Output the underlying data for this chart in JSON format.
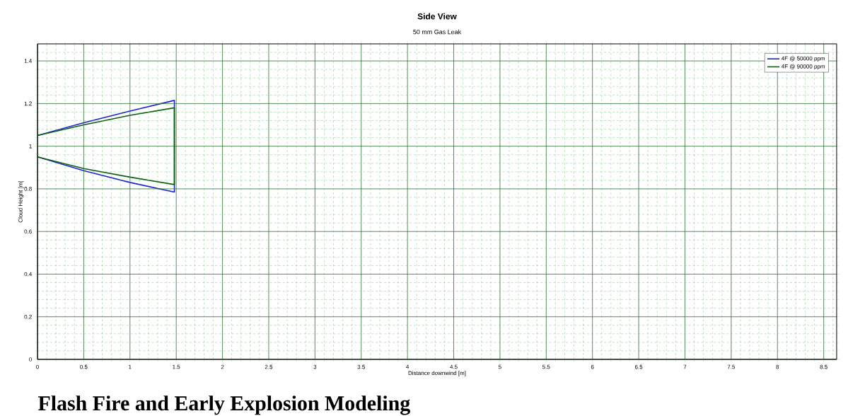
{
  "chart_data": {
    "type": "line",
    "title": "Side View",
    "subtitle": "50 mm Gas Leak",
    "xlabel": "Distance downwind [m]",
    "ylabel": "Cloud Height [m]",
    "series": [
      {
        "name": "4F @ 50000 ppm",
        "color": "#1f1fd6",
        "x": [
          0,
          0.5,
          1,
          1.48,
          1.48,
          1,
          0.5,
          0
        ],
        "values": [
          1.05,
          1.11,
          1.165,
          1.215,
          0.785,
          0.83,
          0.885,
          0.95
        ]
      },
      {
        "name": "4F @ 90000 ppm",
        "color": "#0f5c14",
        "x": [
          0,
          0.5,
          1,
          1.48,
          1.48,
          1,
          0.5,
          0
        ],
        "values": [
          1.05,
          1.1,
          1.145,
          1.18,
          0.82,
          0.855,
          0.895,
          0.95
        ]
      }
    ],
    "xlim": [
      0,
      8.64
    ],
    "ylim": [
      0,
      1.48
    ],
    "xticks": [
      0,
      {
        "value": 0.1,
        "label": null
      },
      {
        "value": 0.2,
        "label": null
      },
      {
        "value": 0.3,
        "label": null
      },
      {
        "value": 0.4,
        "label": null
      },
      0.5,
      {
        "value": 0.6,
        "label": null
      },
      {
        "value": 0.7,
        "label": null
      },
      {
        "value": 0.8,
        "label": null
      },
      {
        "value": 0.9,
        "label": null
      },
      1,
      {
        "value": 1.1,
        "label": null
      },
      {
        "value": 1.2,
        "label": null
      },
      {
        "value": 1.3,
        "label": null
      },
      {
        "value": 1.4,
        "label": null
      },
      1.5,
      {
        "value": 1.6,
        "label": null
      },
      {
        "value": 1.7,
        "label": null
      },
      {
        "value": 1.8,
        "label": null
      },
      {
        "value": 1.9,
        "label": null
      },
      2,
      {
        "value": 2.1,
        "label": null
      },
      {
        "value": 2.2,
        "label": null
      },
      {
        "value": 2.3,
        "label": null
      },
      {
        "value": 2.4,
        "label": null
      },
      2.5,
      {
        "value": 2.6,
        "label": null
      },
      {
        "value": 2.7,
        "label": null
      },
      {
        "value": 2.8,
        "label": null
      },
      {
        "value": 2.9,
        "label": null
      },
      3,
      {
        "value": 3.1,
        "label": null
      },
      {
        "value": 3.2,
        "label": null
      },
      {
        "value": 3.3,
        "label": null
      },
      {
        "value": 3.4,
        "label": null
      },
      3.5,
      {
        "value": 3.6,
        "label": null
      },
      {
        "value": 3.7,
        "label": null
      },
      {
        "value": 3.8,
        "label": null
      },
      {
        "value": 3.9,
        "label": null
      },
      4,
      {
        "value": 4.1,
        "label": null
      },
      {
        "value": 4.2,
        "label": null
      },
      {
        "value": 4.3,
        "label": null
      },
      {
        "value": 4.4,
        "label": null
      },
      4.5,
      {
        "value": 4.6,
        "label": null
      },
      {
        "value": 4.7,
        "label": null
      },
      {
        "value": 4.8,
        "label": null
      },
      {
        "value": 4.9,
        "label": null
      },
      5,
      {
        "value": 5.1,
        "label": null
      },
      {
        "value": 5.2,
        "label": null
      },
      {
        "value": 5.3,
        "label": null
      },
      {
        "value": 5.4,
        "label": null
      },
      5.5,
      {
        "value": 5.6,
        "label": null
      },
      {
        "value": 5.7,
        "label": null
      },
      {
        "value": 5.8,
        "label": null
      },
      {
        "value": 5.9,
        "label": null
      },
      6,
      {
        "value": 6.1,
        "label": null
      },
      {
        "value": 6.2,
        "label": null
      },
      {
        "value": 6.3,
        "label": null
      },
      {
        "value": 6.4,
        "label": null
      },
      6.5,
      {
        "value": 6.6,
        "label": null
      },
      {
        "value": 6.7,
        "label": null
      },
      {
        "value": 6.8,
        "label": null
      },
      {
        "value": 6.9,
        "label": null
      },
      7,
      {
        "value": 7.1,
        "label": null
      },
      {
        "value": 7.2,
        "label": null
      },
      {
        "value": 7.3,
        "label": null
      },
      {
        "value": 7.4,
        "label": null
      },
      7.5,
      {
        "value": 7.6,
        "label": null
      },
      {
        "value": 7.7,
        "label": null
      },
      {
        "value": 7.8,
        "label": null
      },
      {
        "value": 7.9,
        "label": null
      },
      8,
      {
        "value": 8.1,
        "label": null
      },
      {
        "value": 8.2,
        "label": null
      },
      {
        "value": 8.3,
        "label": null
      },
      {
        "value": 8.4,
        "label": null
      },
      8.5,
      {
        "value": 8.6,
        "label": null
      }
    ],
    "yticks": [
      0,
      {
        "value": 0.04,
        "label": null
      },
      {
        "value": 0.08,
        "label": null
      },
      {
        "value": 0.12,
        "label": null
      },
      {
        "value": 0.16,
        "label": null
      },
      0.2,
      {
        "value": 0.24,
        "label": null
      },
      {
        "value": 0.28,
        "label": null
      },
      {
        "value": 0.32,
        "label": null
      },
      {
        "value": 0.36,
        "label": null
      },
      0.4,
      {
        "value": 0.44,
        "label": null
      },
      {
        "value": 0.48,
        "label": null
      },
      {
        "value": 0.52,
        "label": null
      },
      {
        "value": 0.56,
        "label": null
      },
      0.6,
      {
        "value": 0.64,
        "label": null
      },
      {
        "value": 0.68,
        "label": null
      },
      {
        "value": 0.72,
        "label": null
      },
      {
        "value": 0.76,
        "label": null
      },
      0.8,
      {
        "value": 0.84,
        "label": null
      },
      {
        "value": 0.88,
        "label": null
      },
      {
        "value": 0.92,
        "label": null
      },
      {
        "value": 0.96,
        "label": null
      },
      1,
      {
        "value": 1.04,
        "label": null
      },
      {
        "value": 1.08,
        "label": null
      },
      {
        "value": 1.12,
        "label": null
      },
      {
        "value": 1.16,
        "label": null
      },
      1.2,
      {
        "value": 1.24,
        "label": null
      },
      {
        "value": 1.28,
        "label": null
      },
      {
        "value": 1.32,
        "label": null
      },
      {
        "value": 1.36,
        "label": null
      },
      1.4,
      {
        "value": 1.44,
        "label": null
      }
    ],
    "grid": true,
    "legend": "top right",
    "annotations": [
      "Flash Fire and Early Explosion Modeling"
    ]
  }
}
